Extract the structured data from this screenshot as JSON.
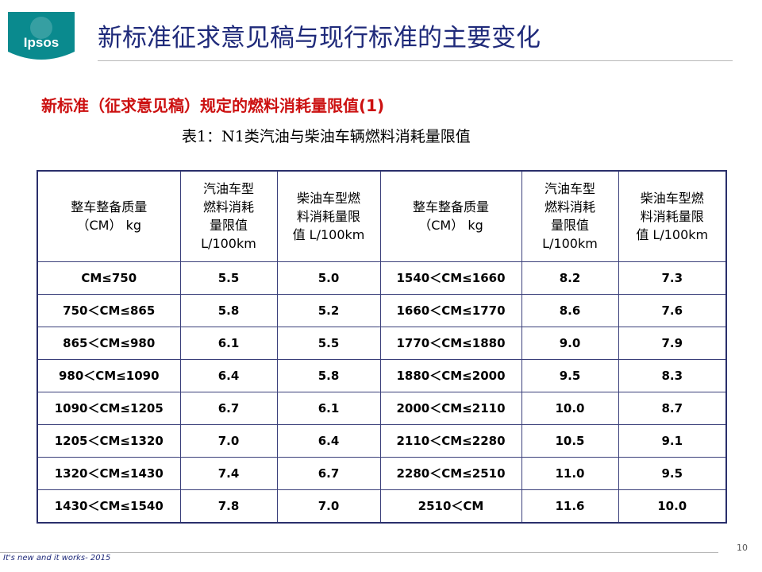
{
  "logo": {
    "text": "Ipsos",
    "color": "#0a8a8e"
  },
  "title": "新标准征求意见稿与现行标准的主要变化",
  "subtitle": "新标准（征求意见稿）规定的燃料消耗量限值(1)",
  "caption": "表1：N1类汽油与柴油车辆燃料消耗量限值",
  "table": {
    "headers": [
      "整车整备质量\n（CM） kg",
      "汽油车型\n燃料消耗\n量限值\nL/100km",
      "柴油车型燃\n料消耗量限\n值 L/100km",
      "整车整备质量\n（CM） kg",
      "汽油车型\n燃料消耗\n量限值\nL/100km",
      "柴油车型燃\n料消耗量限\n值 L/100km"
    ],
    "rows": [
      [
        "CM≤750",
        "5.5",
        "5.0",
        "1540＜CM≤1660",
        "8.2",
        "7.3"
      ],
      [
        "750＜CM≤865",
        "5.8",
        "5.2",
        "1660＜CM≤1770",
        "8.6",
        "7.6"
      ],
      [
        "865＜CM≤980",
        "6.1",
        "5.5",
        "1770＜CM≤1880",
        "9.0",
        "7.9"
      ],
      [
        "980＜CM≤1090",
        "6.4",
        "5.8",
        "1880＜CM≤2000",
        "9.5",
        "8.3"
      ],
      [
        "1090＜CM≤1205",
        "6.7",
        "6.1",
        "2000＜CM≤2110",
        "10.0",
        "8.7"
      ],
      [
        "1205＜CM≤1320",
        "7.0",
        "6.4",
        "2110＜CM≤2280",
        "10.5",
        "9.1"
      ],
      [
        "1320＜CM≤1430",
        "7.4",
        "6.7",
        "2280＜CM≤2510",
        "11.0",
        "9.5"
      ],
      [
        "1430＜CM≤1540",
        "7.8",
        "7.0",
        "2510＜CM",
        "11.6",
        "10.0"
      ]
    ]
  },
  "footer": {
    "text": "It's new and it works- 2015",
    "page_number": "10"
  },
  "colors": {
    "title": "#1f2a7a",
    "subtitle": "#cc1111",
    "table_border": "#2a2f6b"
  }
}
